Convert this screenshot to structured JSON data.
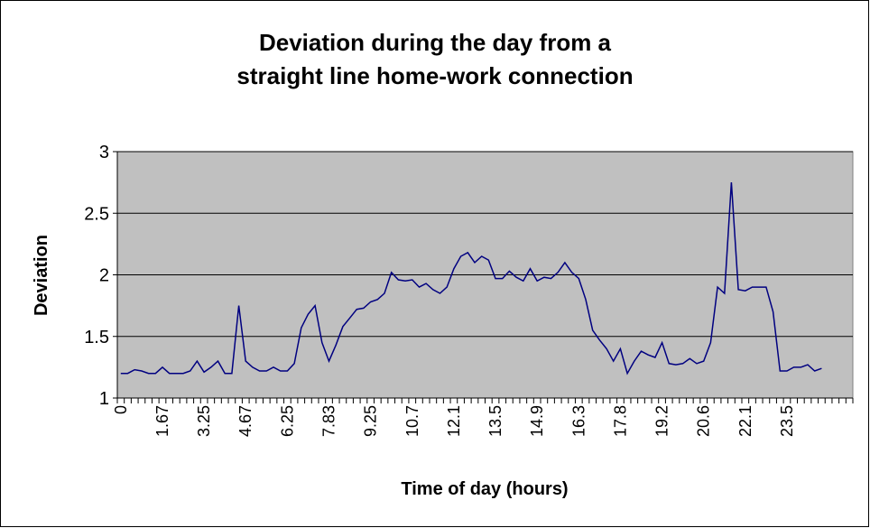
{
  "chart_data": {
    "type": "line",
    "title": "Deviation during the day from a straight line home-work connection",
    "title_lines": [
      "Deviation during the day from a",
      "straight line home-work connection"
    ],
    "x_label": "Time of day (hours)",
    "y_label": "Deviation",
    "categories": [
      "0",
      null,
      null,
      null,
      null,
      null,
      "1.67",
      null,
      null,
      null,
      null,
      null,
      "3.25",
      null,
      null,
      null,
      null,
      null,
      "4.67",
      null,
      null,
      null,
      null,
      null,
      "6.25",
      null,
      null,
      null,
      null,
      null,
      "7.83",
      null,
      null,
      null,
      null,
      null,
      "9.25",
      null,
      null,
      null,
      null,
      null,
      "10.7",
      null,
      null,
      null,
      null,
      null,
      "12.1",
      null,
      null,
      null,
      null,
      null,
      "13.5",
      null,
      null,
      null,
      null,
      null,
      "14.9",
      null,
      null,
      null,
      null,
      null,
      "16.3",
      null,
      null,
      null,
      null,
      null,
      "17.8",
      null,
      null,
      null,
      null,
      null,
      "19.2",
      null,
      null,
      null,
      null,
      null,
      "20.6",
      null,
      null,
      null,
      null,
      null,
      "22.1",
      null,
      null,
      null,
      null,
      null,
      "23.5",
      null,
      null,
      null,
      null,
      null,
      null,
      null,
      null,
      null
    ],
    "series": [
      {
        "name": "Deviation",
        "color": "#000080",
        "values": [
          1.2,
          1.2,
          1.23,
          1.22,
          1.2,
          1.2,
          1.25,
          1.2,
          1.2,
          1.2,
          1.22,
          1.3,
          1.21,
          1.25,
          1.3,
          1.2,
          1.2,
          1.75,
          1.3,
          1.25,
          1.22,
          1.22,
          1.25,
          1.22,
          1.22,
          1.28,
          1.57,
          1.68,
          1.75,
          1.45,
          1.3,
          1.43,
          1.58,
          1.65,
          1.72,
          1.73,
          1.78,
          1.8,
          1.85,
          2.02,
          1.96,
          1.95,
          1.96,
          1.9,
          1.93,
          1.88,
          1.85,
          1.9,
          2.05,
          2.15,
          2.18,
          2.1,
          2.15,
          2.12,
          1.97,
          1.97,
          2.03,
          1.98,
          1.95,
          2.05,
          1.95,
          1.98,
          1.97,
          2.02,
          2.1,
          2.02,
          1.97,
          1.8,
          1.55,
          1.47,
          1.4,
          1.3,
          1.4,
          1.2,
          1.3,
          1.38,
          1.35,
          1.33,
          1.45,
          1.28,
          1.27,
          1.28,
          1.32,
          1.28,
          1.3,
          1.45,
          1.9,
          1.85,
          2.75,
          1.88,
          1.87,
          1.9,
          1.9,
          1.9,
          1.7,
          1.22,
          1.22,
          1.25,
          1.25,
          1.27,
          1.22,
          1.24,
          null,
          null,
          null,
          null
        ]
      }
    ],
    "ylim": [
      1,
      3
    ],
    "yticks": [
      1,
      1.5,
      2,
      2.5,
      3
    ],
    "grid": true,
    "plot_background": "#c0c0c0"
  }
}
